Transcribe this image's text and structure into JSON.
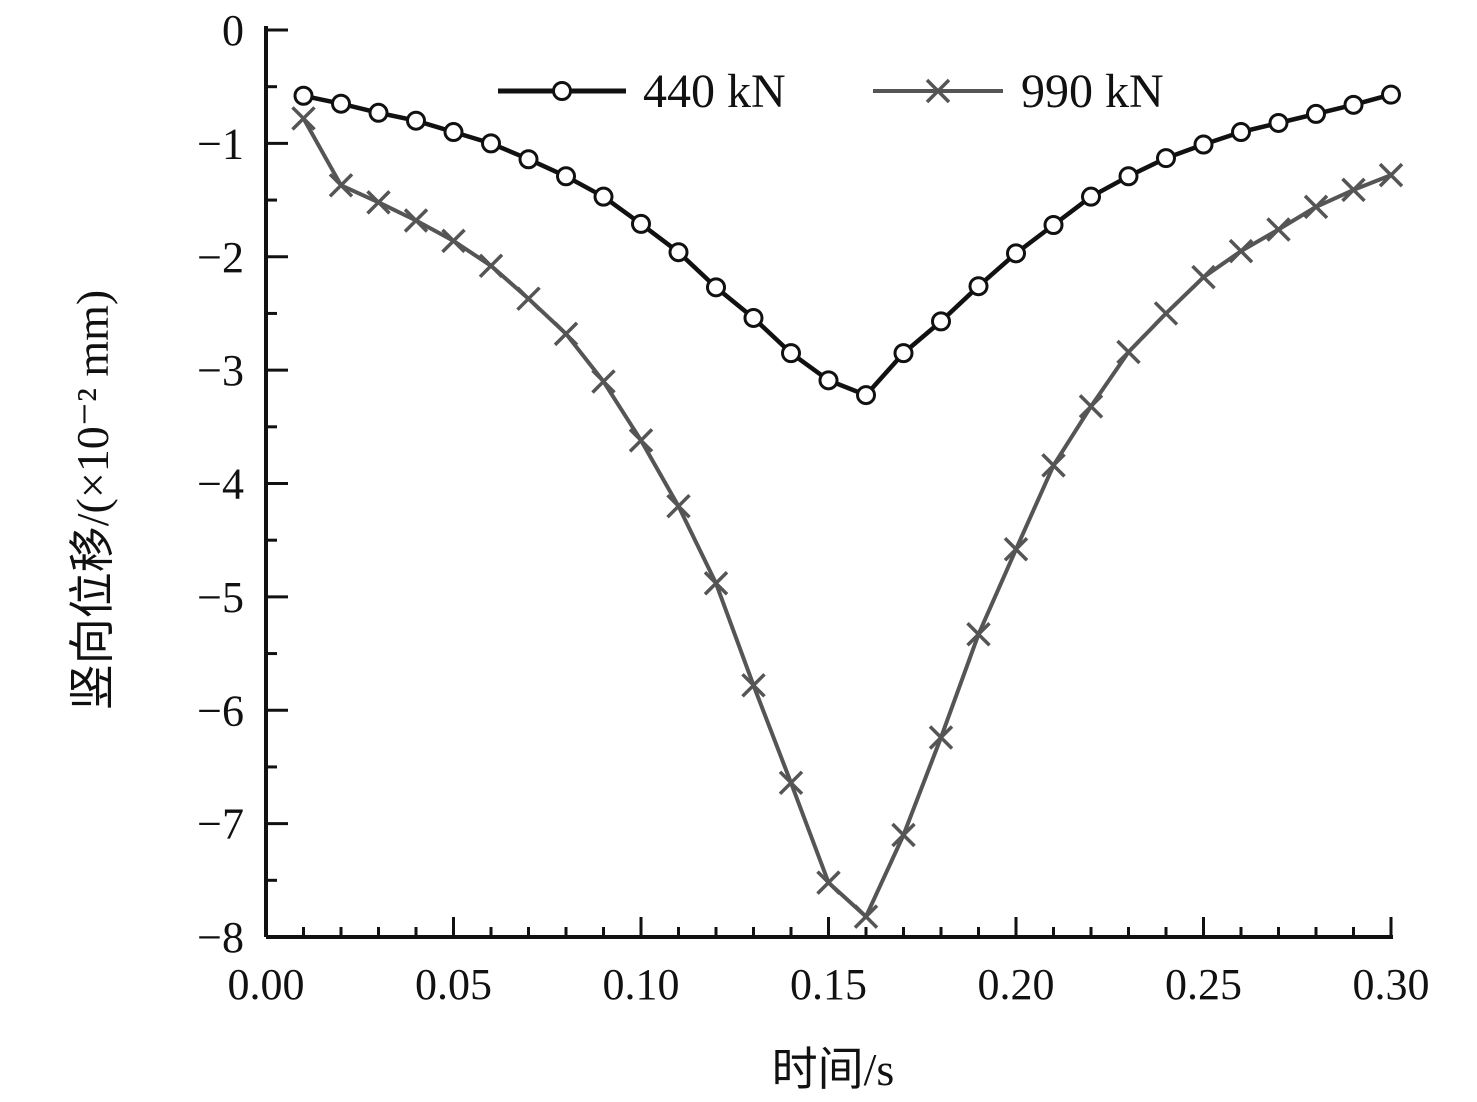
{
  "chart_data": {
    "type": "line",
    "title": "",
    "xlabel": "时间/s",
    "ylabel": "竖向位移/(×10⁻² mm)",
    "xlim": [
      0.0,
      0.3
    ],
    "ylim": [
      -8,
      0
    ],
    "x_ticks": [
      "0.00",
      "0.05",
      "0.10",
      "0.15",
      "0.20",
      "0.25",
      "0.30"
    ],
    "y_ticks": [
      "0",
      "−1",
      "−2",
      "−3",
      "−4",
      "−5",
      "−6",
      "−7",
      "−8"
    ],
    "grid": false,
    "legend_position": "top-center",
    "x": [
      0.01,
      0.02,
      0.03,
      0.04,
      0.05,
      0.06,
      0.07,
      0.08,
      0.09,
      0.1,
      0.11,
      0.12,
      0.13,
      0.14,
      0.15,
      0.16,
      0.17,
      0.18,
      0.19,
      0.2,
      0.21,
      0.22,
      0.23,
      0.24,
      0.25,
      0.26,
      0.27,
      0.28,
      0.29,
      0.3
    ],
    "series": [
      {
        "name": "440 kN",
        "marker": "circle",
        "color": "#111111",
        "values": [
          -0.58,
          -0.65,
          -0.73,
          -0.8,
          -0.9,
          -1.0,
          -1.14,
          -1.29,
          -1.47,
          -1.71,
          -1.96,
          -2.27,
          -2.54,
          -2.85,
          -3.09,
          -3.22,
          -2.85,
          -2.57,
          -2.26,
          -1.97,
          -1.72,
          -1.47,
          -1.29,
          -1.13,
          -1.01,
          -0.9,
          -0.82,
          -0.74,
          -0.66,
          -0.57
        ]
      },
      {
        "name": "990 kN",
        "marker": "x",
        "color": "#555555",
        "values": [
          -0.78,
          -1.37,
          -1.52,
          -1.68,
          -1.86,
          -2.08,
          -2.37,
          -2.68,
          -3.1,
          -3.62,
          -4.2,
          -4.88,
          -5.78,
          -6.64,
          -7.52,
          -7.82,
          -7.1,
          -6.24,
          -5.33,
          -4.58,
          -3.84,
          -3.32,
          -2.84,
          -2.5,
          -2.18,
          -1.95,
          -1.76,
          -1.56,
          -1.41,
          -1.28
        ]
      }
    ]
  }
}
